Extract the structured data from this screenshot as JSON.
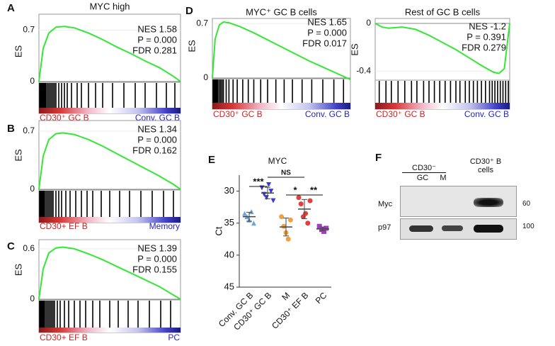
{
  "chart_data": [
    {
      "panel": "A",
      "type": "gsea",
      "title": "MYC high",
      "y_label": "ES",
      "xlim": [
        0,
        1
      ],
      "ylim": [
        0,
        0.82
      ],
      "yticks": [
        0.7,
        0
      ],
      "x": [
        0,
        0.03,
        0.07,
        0.12,
        0.18,
        0.25,
        0.35,
        0.45,
        0.55,
        0.65,
        0.75,
        0.85,
        0.95,
        1
      ],
      "values": [
        0,
        0.45,
        0.66,
        0.74,
        0.75,
        0.73,
        0.66,
        0.57,
        0.47,
        0.38,
        0.28,
        0.19,
        0.07,
        0
      ],
      "hits": [
        0.005,
        0.01,
        0.015,
        0.02,
        0.025,
        0.03,
        0.035,
        0.04,
        0.045,
        0.05,
        0.06,
        0.07,
        0.08,
        0.09,
        0.1,
        0.11,
        0.12,
        0.14,
        0.16,
        0.18,
        0.2,
        0.23,
        0.27,
        0.3,
        0.35,
        0.4,
        0.45,
        0.52,
        0.6,
        0.68,
        0.75,
        0.83,
        0.9,
        0.96
      ],
      "stats": [
        "NES 1.58",
        "P = 0.000",
        "FDR 0.281"
      ],
      "left_label": "CD30⁺ GC B",
      "right_label": "Conv. GC B"
    },
    {
      "panel": "B",
      "type": "gsea",
      "y_label": "ES",
      "xlim": [
        0,
        1
      ],
      "ylim": [
        0,
        0.82
      ],
      "yticks": [
        0.7,
        0
      ],
      "x": [
        0,
        0.03,
        0.07,
        0.12,
        0.17,
        0.25,
        0.35,
        0.45,
        0.55,
        0.65,
        0.75,
        0.85,
        0.95,
        1
      ],
      "values": [
        0,
        0.4,
        0.6,
        0.67,
        0.68,
        0.66,
        0.6,
        0.52,
        0.43,
        0.34,
        0.25,
        0.16,
        0.06,
        0
      ],
      "hits": [
        0.005,
        0.01,
        0.015,
        0.02,
        0.025,
        0.03,
        0.035,
        0.04,
        0.05,
        0.06,
        0.07,
        0.08,
        0.09,
        0.1,
        0.12,
        0.14,
        0.16,
        0.19,
        0.22,
        0.26,
        0.3,
        0.34,
        0.38,
        0.44,
        0.5,
        0.57,
        0.64,
        0.72,
        0.8,
        0.88,
        0.95
      ],
      "stats": [
        "NES 1.34",
        "P = 0.000",
        "FDR 0.162"
      ],
      "left_label": "CD30+ EF B",
      "right_label": "Memory"
    },
    {
      "panel": "C",
      "type": "gsea",
      "y_label": "ES",
      "xlim": [
        0,
        1
      ],
      "ylim": [
        0,
        0.7
      ],
      "yticks": [
        0.6,
        0
      ],
      "x": [
        0,
        0.03,
        0.07,
        0.12,
        0.17,
        0.25,
        0.35,
        0.45,
        0.55,
        0.65,
        0.75,
        0.85,
        0.95,
        1
      ],
      "values": [
        0,
        0.36,
        0.55,
        0.61,
        0.62,
        0.6,
        0.54,
        0.47,
        0.39,
        0.31,
        0.23,
        0.15,
        0.05,
        0
      ],
      "hits": [
        0.005,
        0.01,
        0.015,
        0.02,
        0.025,
        0.03,
        0.035,
        0.04,
        0.05,
        0.06,
        0.07,
        0.08,
        0.09,
        0.1,
        0.11,
        0.13,
        0.15,
        0.18,
        0.21,
        0.25,
        0.29,
        0.33,
        0.38,
        0.43,
        0.5,
        0.56,
        0.63,
        0.7,
        0.78,
        0.86,
        0.93
      ],
      "stats": [
        "NES 1.39",
        "P = 0.000",
        "FDR 0.155"
      ],
      "left_label": "CD30+ EF B",
      "right_label": "PC"
    },
    {
      "panel": "D",
      "type": "gsea",
      "title": "MYC⁺ GC B cells",
      "y_label": "ES",
      "xlim": [
        0,
        1
      ],
      "ylim": [
        0,
        0.82
      ],
      "yticks": [
        0.7,
        0
      ],
      "x": [
        0,
        0.02,
        0.05,
        0.08,
        0.12,
        0.2,
        0.3,
        0.4,
        0.5,
        0.6,
        0.7,
        0.8,
        0.9,
        1
      ],
      "values": [
        0,
        0.5,
        0.68,
        0.72,
        0.71,
        0.66,
        0.58,
        0.49,
        0.4,
        0.31,
        0.22,
        0.14,
        0.06,
        -0.02
      ],
      "hits": [
        0.005,
        0.01,
        0.015,
        0.02,
        0.025,
        0.03,
        0.035,
        0.04,
        0.05,
        0.06,
        0.07,
        0.08,
        0.1,
        0.12,
        0.15,
        0.18,
        0.22,
        0.26,
        0.3,
        0.35,
        0.4,
        0.46,
        0.52,
        0.58,
        0.65,
        0.72,
        0.8,
        0.88,
        0.95
      ],
      "stats": [
        "NES 1.65",
        "P = 0.000",
        "FDR 0.017"
      ],
      "left_label": "CD30⁺ GC B",
      "right_label": "Conv. GC B"
    },
    {
      "type": "gsea",
      "title": "Rest of GC B cells",
      "y_label": "ES",
      "xlim": [
        0,
        1
      ],
      "ylim": [
        -0.47,
        0.03
      ],
      "yticks": [
        0,
        -0.4
      ],
      "x": [
        0,
        0.05,
        0.1,
        0.2,
        0.3,
        0.4,
        0.5,
        0.6,
        0.7,
        0.8,
        0.88,
        0.92,
        0.96,
        1
      ],
      "values": [
        0,
        -0.03,
        -0.04,
        -0.03,
        -0.05,
        -0.1,
        -0.16,
        -0.22,
        -0.29,
        -0.36,
        -0.41,
        -0.42,
        -0.38,
        0
      ],
      "hits": [
        0.03,
        0.08,
        0.12,
        0.17,
        0.22,
        0.27,
        0.31,
        0.36,
        0.4,
        0.44,
        0.48,
        0.52,
        0.56,
        0.6,
        0.63,
        0.67,
        0.7,
        0.73,
        0.76,
        0.79,
        0.82,
        0.85,
        0.87,
        0.89,
        0.91,
        0.93,
        0.95,
        0.97,
        0.99
      ],
      "stats": [
        "NES -1.2",
        "P = 0.391",
        "FDR 0.279"
      ],
      "left_label": "CD30⁺ GC B",
      "right_label": "Conv. GC B"
    },
    {
      "panel": "E",
      "type": "scatter",
      "title": "MYC",
      "y_label": "Ct",
      "ylim": [
        27.5,
        45
      ],
      "inverted": true,
      "yticks": [
        30,
        35,
        40,
        45
      ],
      "categories": [
        "Conv. GC B",
        "CD30⁺ GC B",
        "M",
        "CD30⁺ EF B",
        "PC"
      ],
      "colors": [
        "#6aa6d6",
        "#3a3ad0",
        "#f0a040",
        "#e04040",
        "#a040c0"
      ],
      "values": [
        [
          33.5,
          34,
          34.5,
          33.2,
          35
        ],
        [
          29.5,
          30.5,
          31,
          29,
          30,
          31.5
        ],
        [
          34,
          35.5,
          36.5,
          37.5,
          34.5
        ],
        [
          31,
          32,
          34,
          33.5,
          35,
          31.5
        ],
        [
          35.5,
          36,
          36.3,
          35.8
        ]
      ],
      "means": [
        34,
        30.3,
        35.6,
        32.8,
        35.9
      ],
      "sds": [
        0.7,
        0.9,
        1.4,
        1.5,
        0.3
      ],
      "annotations": [
        "***",
        "NS",
        "*",
        "**"
      ]
    }
  ],
  "blot": {
    "panel": "F",
    "group_label": "CD30⁻",
    "lanes": [
      "GC",
      "M",
      "CD30⁺ B cells"
    ],
    "rows": [
      "Myc",
      "p97"
    ],
    "markers": [
      "60",
      "100"
    ]
  }
}
